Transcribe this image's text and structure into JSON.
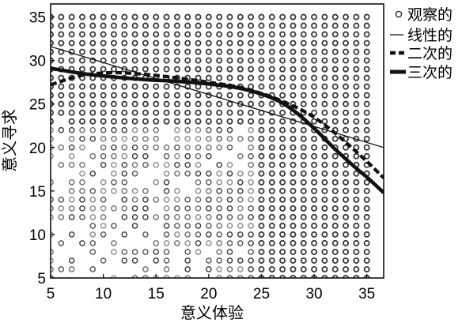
{
  "chart_data": {
    "type": "scatter",
    "title": "",
    "xlabel": "意义体验",
    "ylabel": "意义寻求",
    "xlim": [
      5,
      36.6
    ],
    "ylim": [
      5,
      36.5
    ],
    "xticks": [
      5,
      10,
      15,
      20,
      25,
      30,
      35
    ],
    "yticks": [
      5,
      10,
      15,
      20,
      25,
      30,
      35
    ],
    "grid": false,
    "legend_position": "right",
    "scatter": {
      "name": "观察的",
      "x_values": [
        5,
        6,
        7,
        8,
        9,
        10,
        11,
        12,
        13,
        14,
        15,
        16,
        17,
        18,
        19,
        20,
        21,
        22,
        23,
        24,
        25,
        26,
        27,
        28,
        29,
        30,
        31,
        32,
        33,
        34,
        35
      ],
      "y_values": [
        5,
        6,
        7,
        8,
        9,
        10,
        11,
        12,
        13,
        14,
        15,
        16,
        17,
        18,
        19,
        20,
        21,
        22,
        23,
        24,
        25,
        26,
        27,
        28,
        29,
        30,
        31,
        32,
        33,
        34,
        35
      ],
      "note_density": "dense grid of observations; sparse in the low-x, low-y region"
    },
    "series": [
      {
        "name": "线性的",
        "style": "thin-solid",
        "x": [
          5,
          36.6
        ],
        "y": [
          31.6,
          20.0
        ]
      },
      {
        "name": "二次的",
        "style": "dashed",
        "x": [
          5,
          8,
          11,
          14,
          17,
          20,
          23,
          26,
          29,
          31,
          33,
          35,
          36.6
        ],
        "y": [
          27.2,
          28.3,
          28.6,
          28.4,
          28.0,
          27.5,
          26.9,
          25.8,
          24.2,
          22.6,
          20.6,
          18.4,
          16.5
        ]
      },
      {
        "name": "三次的",
        "style": "thick-solid",
        "x": [
          5,
          8,
          11,
          14,
          17,
          20,
          23,
          26,
          28,
          30,
          32,
          34,
          35,
          36.6
        ],
        "y": [
          29.1,
          28.5,
          28.1,
          27.8,
          27.6,
          27.3,
          26.8,
          25.7,
          24.3,
          22.2,
          19.8,
          17.6,
          16.6,
          14.8
        ]
      }
    ],
    "colors": {
      "points": "#444444",
      "lines": "#111111",
      "background": "#ffffff"
    }
  }
}
